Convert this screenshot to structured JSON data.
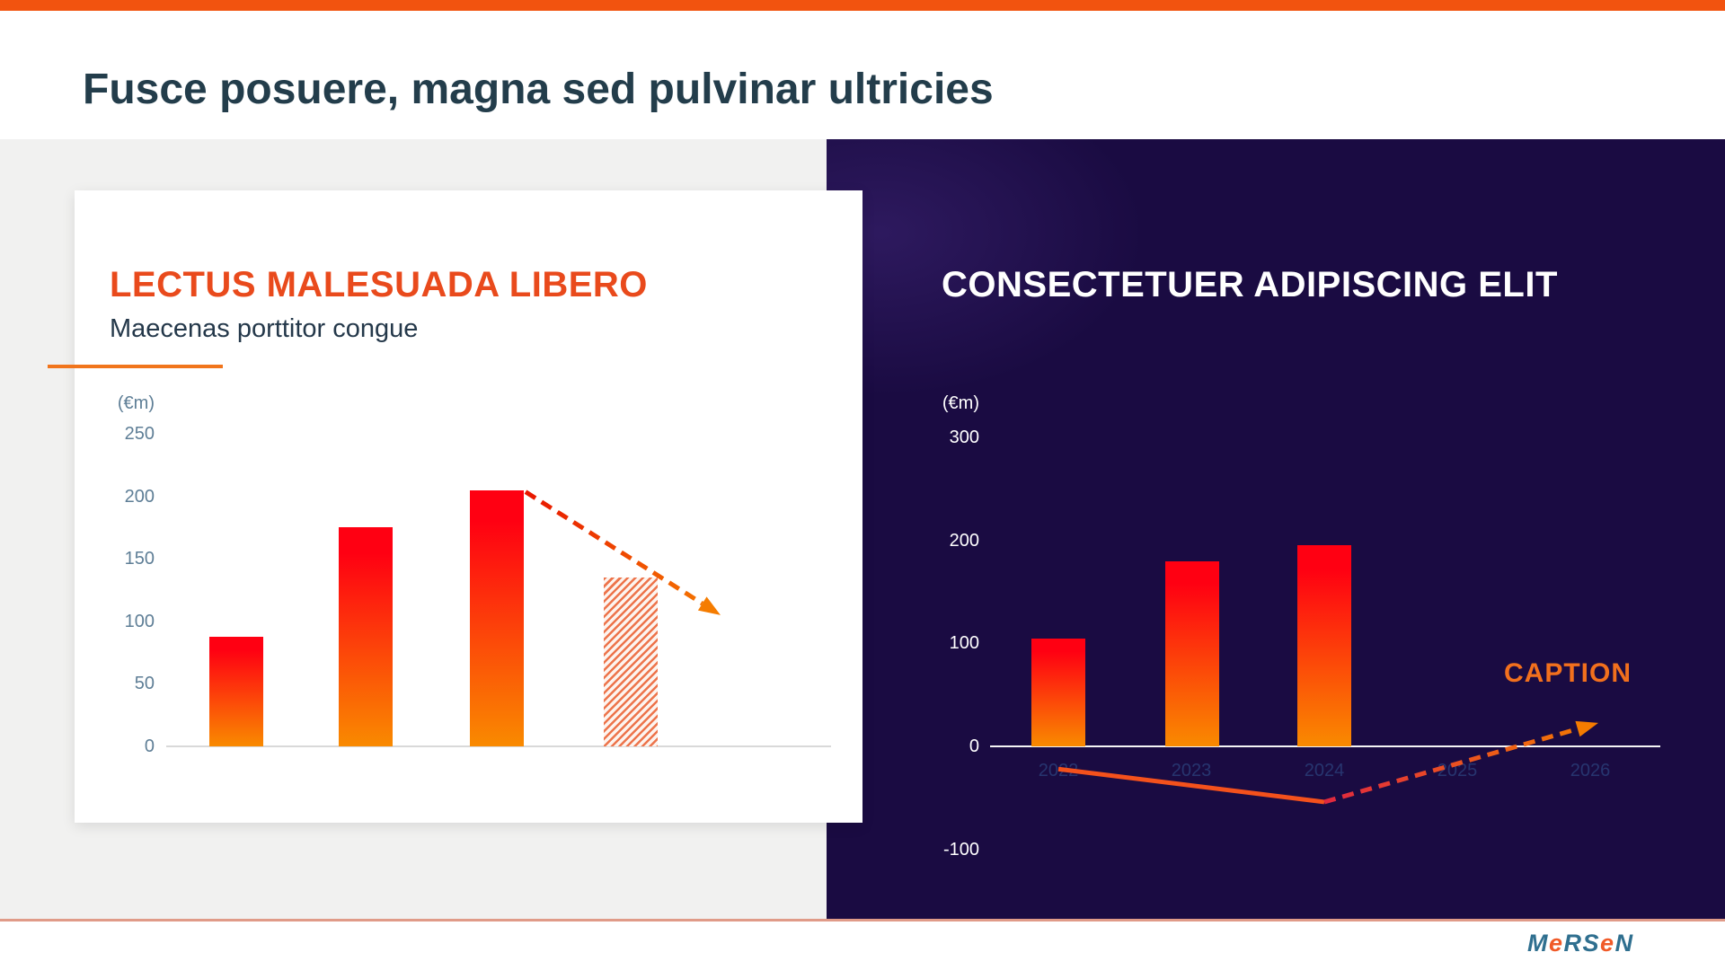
{
  "slide": {
    "header_title": "Fusce posuere, magna sed pulvinar ultricies"
  },
  "left_card": {
    "title": "LECTUS MALESUADA LIBERO",
    "subtitle": "Maecenas porttitor congue"
  },
  "right_panel": {
    "title": "CONSECTETUER ADIPISCING ELIT",
    "caption": "CAPTION"
  },
  "footer": {
    "logo_text": "mersen",
    "logo_letters": [
      "M",
      "e",
      "R",
      "S",
      "e",
      "N"
    ],
    "logo_letter_colors": [
      "#2F6F8F",
      "#F05A28",
      "#2F6F8F",
      "#2F6F8F",
      "#F05A28",
      "#2F6F8F"
    ]
  },
  "colors": {
    "accent_orange": "#F2530F",
    "title_orange": "#E94A1C",
    "dark_slate": "#233D4B",
    "subtitle_slate": "#24384A",
    "gray_panel": "#F1F1F0",
    "navy": "#1A0B42",
    "tick_blue": "#5E7E96",
    "year_label": "#27356F",
    "bar_top": "#FF0012",
    "bar_bottom": "#F98A00",
    "hatch_orange": "#ED744B",
    "hatch_bg": "#FDF4EF",
    "rule_orange": "#F1751C",
    "line_orange": "#F4511C",
    "arrow_orange": "#F57C00",
    "arrow_red_left": "#E81500",
    "arrow_red_right": "#E02840",
    "caption_orange": "#F2701D",
    "axis_gray": "#D9D9D9",
    "separator": "rgba(198,72,38,0.55)",
    "logo_teal": "#2F6F8F",
    "logo_orange": "#F05A28"
  },
  "chart_data": [
    {
      "id": "left_bar_chart",
      "type": "bar",
      "title": "LECTUS MALESUADA LIBERO",
      "subtitle": "Maecenas porttitor congue",
      "unit_label": "(€m)",
      "categories": [
        "",
        "",
        "",
        ""
      ],
      "values": [
        88,
        175,
        205,
        135
      ],
      "bar_styles": [
        "solid",
        "solid",
        "solid",
        "hatched"
      ],
      "ylim": [
        0,
        250
      ],
      "yticks": [
        250,
        200,
        150,
        100,
        50,
        0
      ],
      "x_tick_labels_visible": false,
      "grid": false,
      "legend": null,
      "annotations": [
        {
          "type": "dashed_arrow",
          "meaning": "projected decline from third bar to hatched forecast",
          "from": {
            "bar_index": 2,
            "value": 205
          },
          "to": {
            "value": 105
          }
        }
      ]
    },
    {
      "id": "right_bar_chart",
      "type": "bar",
      "title": "CONSECTETUER ADIPISCING ELIT",
      "unit_label": "(€m)",
      "categories": [
        "2022",
        "2023",
        "2024",
        "2025",
        "2026"
      ],
      "values": [
        105,
        180,
        195,
        null,
        null
      ],
      "bar_styles": [
        "solid",
        "solid",
        "solid",
        null,
        null
      ],
      "ylim": [
        -100,
        300
      ],
      "yticks": [
        300,
        200,
        100,
        0,
        -100
      ],
      "x_tick_labels_visible": true,
      "grid": false,
      "legend": null,
      "caption": "CAPTION",
      "annotations": [
        {
          "type": "solid_line",
          "meaning": "trend dipping below zero",
          "from": {
            "category": "2022",
            "value": -22
          },
          "to": {
            "category": "2024",
            "value": -54
          }
        },
        {
          "type": "dashed_arrow",
          "meaning": "projected recovery",
          "from": {
            "category": "2024",
            "value": -54
          },
          "to": {
            "category": "2026",
            "value": 21
          }
        }
      ]
    }
  ]
}
